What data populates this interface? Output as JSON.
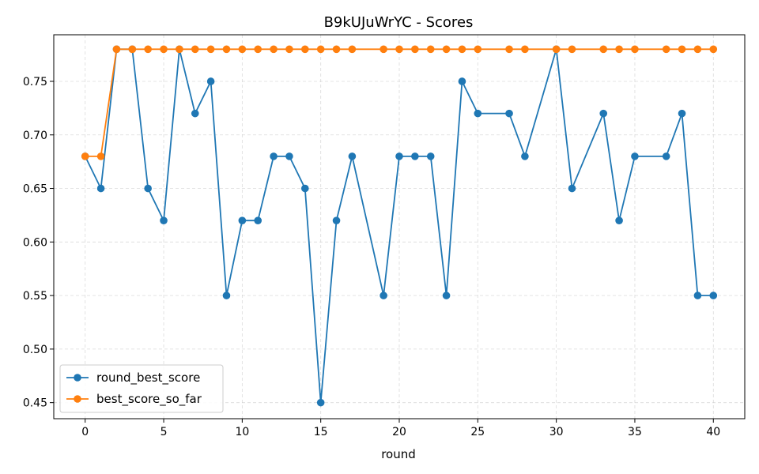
{
  "chart_data": {
    "type": "line",
    "title": "B9kUJuWrYC - Scores",
    "xlabel": "round",
    "ylabel": "",
    "xlim": [
      -2,
      42
    ],
    "ylim": [
      0.435,
      0.7935
    ],
    "xticks": [
      0,
      5,
      10,
      15,
      20,
      25,
      30,
      35,
      40
    ],
    "yticks": [
      0.45,
      0.5,
      0.55,
      0.6,
      0.65,
      0.7,
      0.75
    ],
    "ytick_labels": [
      "0.45",
      "0.50",
      "0.55",
      "0.60",
      "0.65",
      "0.70",
      "0.75"
    ],
    "grid": true,
    "legend_position": "lower-left",
    "series": [
      {
        "name": "round_best_score",
        "color": "#1f77b4",
        "x": [
          0,
          1,
          2,
          3,
          4,
          5,
          6,
          7,
          8,
          9,
          10,
          11,
          12,
          13,
          14,
          15,
          16,
          17,
          19,
          20,
          21,
          22,
          23,
          24,
          25,
          27,
          28,
          30,
          31,
          33,
          34,
          35,
          37,
          38,
          39,
          40
        ],
        "values": [
          0.68,
          0.65,
          0.78,
          0.78,
          0.65,
          0.62,
          0.78,
          0.72,
          0.75,
          0.55,
          0.62,
          0.62,
          0.68,
          0.68,
          0.65,
          0.45,
          0.62,
          0.68,
          0.55,
          0.68,
          0.68,
          0.68,
          0.55,
          0.75,
          0.72,
          0.72,
          0.68,
          0.78,
          0.65,
          0.72,
          0.62,
          0.68,
          0.68,
          0.72,
          0.55,
          0.55
        ]
      },
      {
        "name": "best_score_so_far",
        "color": "#ff7f0e",
        "x": [
          0,
          1,
          2,
          3,
          4,
          5,
          6,
          7,
          8,
          9,
          10,
          11,
          12,
          13,
          14,
          15,
          16,
          17,
          19,
          20,
          21,
          22,
          23,
          24,
          25,
          27,
          28,
          30,
          31,
          33,
          34,
          35,
          37,
          38,
          39,
          40
        ],
        "values": [
          0.68,
          0.68,
          0.78,
          0.78,
          0.78,
          0.78,
          0.78,
          0.78,
          0.78,
          0.78,
          0.78,
          0.78,
          0.78,
          0.78,
          0.78,
          0.78,
          0.78,
          0.78,
          0.78,
          0.78,
          0.78,
          0.78,
          0.78,
          0.78,
          0.78,
          0.78,
          0.78,
          0.78,
          0.78,
          0.78,
          0.78,
          0.78,
          0.78,
          0.78,
          0.78,
          0.78
        ]
      }
    ]
  }
}
